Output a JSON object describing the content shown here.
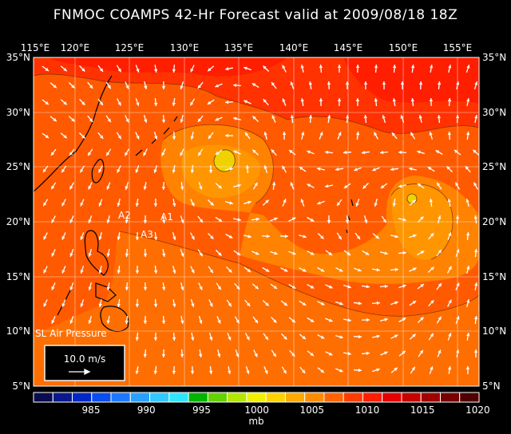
{
  "title": "FNMOC COAMPS 42-Hr Forecast valid at 2009/08/18 18Z",
  "lon_labels": [
    "115°E",
    "120°E",
    "125°E",
    "130°E",
    "135°E",
    "140°E",
    "145°E",
    "150°E",
    "155°E"
  ],
  "lat_labels": [
    "35°N",
    "30°N",
    "25°N",
    "20°N",
    "15°N",
    "10°N",
    "5°N"
  ],
  "field_label": "SL Air Pressure",
  "vector_scale_label": "10.0 m/s",
  "station_labels": [
    "A1",
    "A2",
    "A3"
  ],
  "colorbar": {
    "ticks": [
      "985",
      "990",
      "995",
      "1000",
      "1005",
      "1010",
      "1015",
      "1020"
    ],
    "unit": "mb",
    "colors": [
      "#0b0b4f",
      "#0a1a8c",
      "#0028c8",
      "#0a4ef0",
      "#1e78ff",
      "#28a0ff",
      "#30c8ff",
      "#30e6ff",
      "#00b400",
      "#64d200",
      "#b4e600",
      "#f0f000",
      "#ffd200",
      "#ffaa00",
      "#ff8c00",
      "#ff6400",
      "#ff3c00",
      "#ff1e00",
      "#e60000",
      "#c80000",
      "#a00000",
      "#780000",
      "#500000"
    ]
  }
}
